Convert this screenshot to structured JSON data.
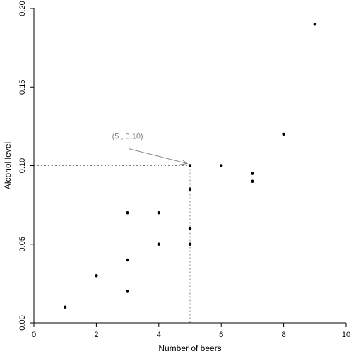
{
  "chart_data": {
    "type": "scatter",
    "title": "",
    "xlabel": "Number of beers",
    "ylabel": "Alcohol level",
    "xlim": [
      0,
      10
    ],
    "ylim": [
      0,
      0.2
    ],
    "xticks": [
      0,
      2,
      4,
      6,
      8,
      10
    ],
    "xtick_labels": [
      "0",
      "2",
      "4",
      "6",
      "8",
      "10"
    ],
    "yticks": [
      0,
      0.05,
      0.1,
      0.15,
      0.2
    ],
    "ytick_labels": [
      "0.00",
      "0.05",
      "0.10",
      "0.15",
      "0.20"
    ],
    "grid": false,
    "x": [
      1,
      2,
      3,
      3,
      3,
      4,
      4,
      5,
      5,
      5,
      5,
      6,
      7,
      7,
      8,
      9
    ],
    "y": [
      0.01,
      0.03,
      0.02,
      0.04,
      0.07,
      0.05,
      0.07,
      0.05,
      0.06,
      0.085,
      0.1,
      0.1,
      0.09,
      0.095,
      0.12,
      0.19
    ],
    "annotation": {
      "text": "(5 , 0.10)",
      "point": [
        5,
        0.1
      ],
      "text_anchor": [
        3,
        0.117
      ],
      "reference_lines": "dotted",
      "color": "#808080"
    }
  }
}
